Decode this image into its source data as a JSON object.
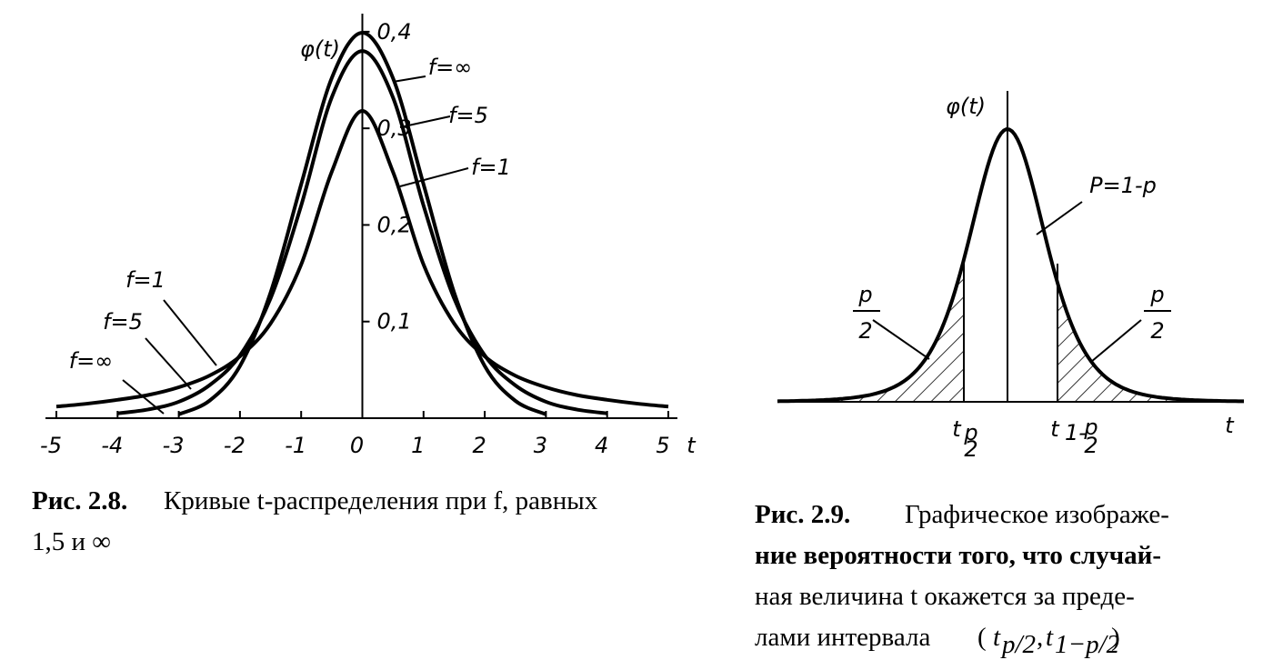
{
  "chart_data": {
    "type": "line",
    "axis_label_y": "φ(t)",
    "axis_label_x": "t",
    "x": [
      -5,
      -4.5,
      -4,
      -3.5,
      -3,
      -2.5,
      -2,
      -1.5,
      -1,
      -0.5,
      0,
      0.5,
      1,
      1.5,
      2,
      2.5,
      3,
      3.5,
      4,
      4.5,
      5
    ],
    "series": [
      {
        "name": "f=∞",
        "color": "#000000",
        "values": [
          null,
          null,
          null,
          null,
          0.004,
          0.018,
          0.054,
          0.13,
          0.242,
          0.352,
          0.399,
          0.352,
          0.242,
          0.13,
          0.054,
          0.018,
          0.004,
          null,
          null,
          null,
          null
        ]
      },
      {
        "name": "f=5",
        "color": "#000000",
        "values": [
          null,
          null,
          0.005,
          0.009,
          0.017,
          0.034,
          0.065,
          0.124,
          0.22,
          0.332,
          0.38,
          0.332,
          0.22,
          0.124,
          0.065,
          0.034,
          0.017,
          0.009,
          0.005,
          null,
          null
        ]
      },
      {
        "name": "f=1",
        "color": "#000000",
        "values": [
          0.012,
          0.015,
          0.019,
          0.024,
          0.032,
          0.044,
          0.064,
          0.098,
          0.159,
          0.255,
          0.318,
          0.255,
          0.159,
          0.098,
          0.064,
          0.044,
          0.032,
          0.024,
          0.019,
          0.015,
          0.012
        ]
      }
    ],
    "xlim": [
      -5,
      5
    ],
    "ylim": [
      0,
      0.43
    ],
    "xticks": [
      -5,
      -4,
      -3,
      -2,
      -1,
      0,
      1,
      2,
      3,
      4,
      5
    ],
    "yticks": [
      {
        "value": 0.1,
        "label": "0,1"
      },
      {
        "value": 0.2,
        "label": "0,2"
      },
      {
        "value": 0.3,
        "label": "0,3"
      },
      {
        "value": 0.4,
        "label": "0,4"
      }
    ],
    "caption_label": "Рис. 2.8.",
    "caption_lines": [
      "Кривые t-распределения при f, равных",
      "1,5 и ∞"
    ]
  },
  "figure_2_9": {
    "axis_label_y": "φ(t)",
    "axis_label_x": "t",
    "center_label": "P=1-p",
    "tail_label": {
      "numerator": "p",
      "denominator": "2"
    },
    "left_tick": {
      "base": "t",
      "numerator": "p",
      "denominator": "2"
    },
    "right_tick": {
      "base": "t",
      "prefix": "1-",
      "numerator": "p",
      "denominator": "2"
    },
    "caption_label": "Рис. 2.9.",
    "caption_lines": [
      "Графическое изображе-",
      "ние вероятности того, что случай-",
      "ная величина t окажется за преде-"
    ],
    "caption_last": "лами интервала",
    "interval": {
      "open": "(",
      "t1": "t",
      "s1": "p/2",
      "sep": ",",
      "t2": "t",
      "s2": "1−p/2",
      "close": ")"
    }
  }
}
